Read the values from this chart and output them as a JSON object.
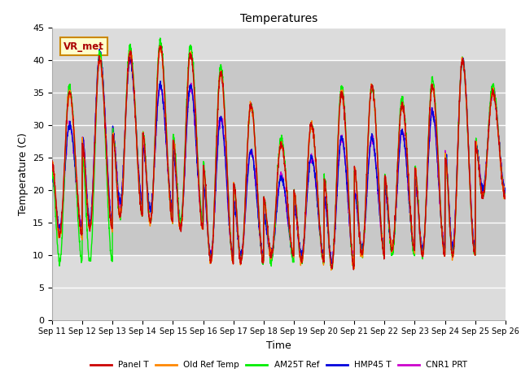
{
  "title": "Temperatures",
  "xlabel": "Time",
  "ylabel": "Temperature (C)",
  "ylim": [
    0,
    45
  ],
  "yticks": [
    0,
    5,
    10,
    15,
    20,
    25,
    30,
    35,
    40,
    45
  ],
  "annotation": "VR_met",
  "x_labels": [
    "Sep 11",
    "Sep 12",
    "Sep 13",
    "Sep 14",
    "Sep 15",
    "Sep 16",
    "Sep 17",
    "Sep 18",
    "Sep 19",
    "Sep 20",
    "Sep 21",
    "Sep 22",
    "Sep 23",
    "Sep 24",
    "Sep 25",
    "Sep 26"
  ],
  "legend_labels": [
    "Panel T",
    "Old Ref Temp",
    "AM25T Ref",
    "HMP45 T",
    "CNR1 PRT"
  ],
  "line_colors": [
    "#cc0000",
    "#ff8800",
    "#00ee00",
    "#0000dd",
    "#cc00cc"
  ],
  "background_color": "#dcdcdc",
  "shaded_band_color": "#c8c8c8",
  "shaded_band": [
    10,
    40
  ],
  "grid_color": "#ffffff",
  "n_days": 15,
  "samples_per_day": 144,
  "day_peaks_main": [
    35,
    40,
    41,
    42,
    41,
    38,
    33,
    27,
    30,
    35,
    36,
    33,
    36,
    40,
    35
  ],
  "day_mins_main": [
    13,
    14,
    16,
    15,
    14,
    9,
    9,
    10,
    9,
    8,
    10,
    11,
    10,
    10,
    19
  ],
  "day_peaks_am25t": [
    36,
    41,
    42,
    43,
    42,
    39,
    33,
    28,
    30,
    36,
    36,
    34,
    37,
    40,
    36
  ],
  "day_mins_am25t": [
    9,
    9,
    16,
    15,
    15,
    9,
    9,
    9,
    9,
    8,
    10,
    10,
    10,
    10,
    19
  ],
  "day_peaks_hmp45": [
    30,
    41,
    40,
    36,
    36,
    31,
    26,
    22,
    25,
    28,
    28,
    29,
    32,
    40,
    35
  ],
  "day_mins_hmp45": [
    14,
    15,
    18,
    17,
    15,
    10,
    10,
    10,
    10,
    9,
    11,
    11,
    11,
    11,
    20
  ],
  "day_peaks_cnr1": [
    30,
    41,
    40,
    36,
    36,
    31,
    26,
    22,
    25,
    28,
    28,
    29,
    32,
    40,
    35
  ],
  "day_mins_cnr1": [
    14,
    15,
    18,
    17,
    15,
    10,
    10,
    10,
    10,
    9,
    11,
    11,
    11,
    11,
    20
  ],
  "peak_time": 0.58,
  "trough_time": 0.25
}
